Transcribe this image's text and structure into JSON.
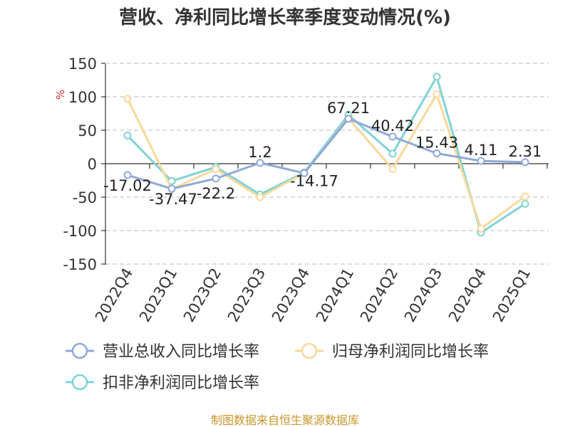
{
  "chart_data": {
    "type": "line",
    "title": "营收、净利同比增长率季度变动情况(%)",
    "unit": "%",
    "categories": [
      "2022Q4",
      "2023Q1",
      "2023Q2",
      "2023Q3",
      "2023Q4",
      "2024Q1",
      "2024Q2",
      "2024Q3",
      "2024Q4",
      "2025Q1"
    ],
    "ylim": [
      -150,
      150
    ],
    "yticks": [
      150,
      100,
      50,
      0,
      -50,
      -100,
      -150
    ],
    "grid": true,
    "legend_position": "bottom",
    "series": [
      {
        "name": "营业总收入同比增长率",
        "color": "#8fa8d8",
        "values": [
          -17.02,
          -37.47,
          -22.2,
          1.2,
          -14.17,
          67.21,
          40.42,
          15.43,
          4.11,
          2.31
        ],
        "labels": [
          "-17.02",
          "-37.47",
          "-22.2",
          "1.2",
          "-14.17",
          "67.21",
          "40.42",
          "15.43",
          "4.11",
          "2.31"
        ]
      },
      {
        "name": "归母净利润同比增长率",
        "color": "#f8d99b",
        "values": [
          97,
          -38,
          -8,
          -50,
          -14,
          68,
          -8,
          104,
          -97,
          -49
        ]
      },
      {
        "name": "扣非净利润同比增长率",
        "color": "#7fd3d6",
        "values": [
          42,
          -26,
          -5,
          -46,
          -13,
          73,
          15,
          130,
          -103,
          -60
        ]
      }
    ],
    "source": "制图数据来自恒生聚源数据库"
  }
}
